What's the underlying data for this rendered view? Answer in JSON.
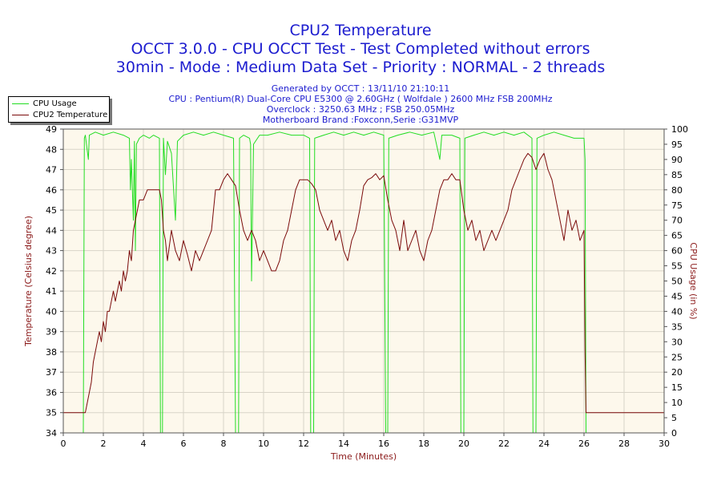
{
  "titles": [
    "CPU2 Temperature",
    "OCCT 3.0.0 - CPU OCCT Test - Test Completed without errors",
    "30min - Mode : Medium Data Set - Priority : NORMAL - 2 threads"
  ],
  "info": [
    "Generated by OCCT : 13/11/10 21:10:11",
    "CPU : Pentium(R) Dual-Core CPU E5300 @ 2.60GHz ( Wolfdale ) 2600 MHz FSB 200MHz",
    "Overclock : 3250.63 MHz ; FSB 250.05MHz",
    "Motherboard Brand :Foxconn,Serie :G31MVP"
  ],
  "colors": {
    "plot_bg": "#fdf8ec",
    "grid": "#d8d4c8",
    "temperature": "#7a0a0a",
    "cpu_usage": "#22dd22",
    "title": "#1c1ccf",
    "axis_title": "#8b1a1a"
  },
  "chart_data": {
    "type": "line",
    "xlabel": "Time (Minutes)",
    "ylabel_left": "Temperature (Celsius degree)",
    "ylabel_right": "CPU Usage (in %)",
    "xlim": [
      0,
      30
    ],
    "ylim_left": [
      34,
      49
    ],
    "ylim_right": [
      0,
      100
    ],
    "x_ticks": [
      0,
      2,
      4,
      6,
      8,
      10,
      12,
      14,
      16,
      18,
      20,
      22,
      24,
      26,
      28,
      30
    ],
    "y_ticks_left": [
      34,
      35,
      36,
      37,
      38,
      39,
      40,
      41,
      42,
      43,
      44,
      45,
      46,
      47,
      48,
      49
    ],
    "y_ticks_right": [
      0,
      5,
      10,
      15,
      20,
      25,
      30,
      35,
      40,
      45,
      50,
      55,
      60,
      65,
      70,
      75,
      80,
      85,
      90,
      95,
      100
    ],
    "legend": {
      "position": "top-left",
      "entries": [
        "CPU Usage",
        "CPU2 Temperature"
      ]
    },
    "series": [
      {
        "name": "CPU Usage",
        "axis": "right",
        "points": [
          [
            0,
            0
          ],
          [
            1.0,
            0
          ],
          [
            1.05,
            97
          ],
          [
            1.1,
            98
          ],
          [
            1.25,
            90
          ],
          [
            1.3,
            98
          ],
          [
            1.6,
            99
          ],
          [
            2.0,
            98
          ],
          [
            2.5,
            99
          ],
          [
            3.0,
            98
          ],
          [
            3.3,
            97
          ],
          [
            3.35,
            80
          ],
          [
            3.4,
            90
          ],
          [
            3.5,
            70
          ],
          [
            3.55,
            96
          ],
          [
            3.6,
            60
          ],
          [
            3.65,
            95
          ],
          [
            3.8,
            97
          ],
          [
            4.0,
            98
          ],
          [
            4.3,
            97
          ],
          [
            4.5,
            98
          ],
          [
            4.8,
            97
          ],
          [
            4.85,
            0
          ],
          [
            4.95,
            0
          ],
          [
            5.0,
            97
          ],
          [
            5.1,
            85
          ],
          [
            5.2,
            96
          ],
          [
            5.4,
            92
          ],
          [
            5.6,
            70
          ],
          [
            5.7,
            96
          ],
          [
            6.0,
            98
          ],
          [
            6.5,
            99
          ],
          [
            7.0,
            98
          ],
          [
            7.5,
            99
          ],
          [
            8.0,
            98
          ],
          [
            8.5,
            97
          ],
          [
            8.6,
            0
          ],
          [
            8.75,
            0
          ],
          [
            8.8,
            97
          ],
          [
            9.0,
            98
          ],
          [
            9.3,
            97
          ],
          [
            9.35,
            95
          ],
          [
            9.4,
            50
          ],
          [
            9.5,
            95
          ],
          [
            9.8,
            98
          ],
          [
            10.2,
            98
          ],
          [
            10.8,
            99
          ],
          [
            11.4,
            98
          ],
          [
            12.0,
            98
          ],
          [
            12.3,
            97
          ],
          [
            12.35,
            0
          ],
          [
            12.5,
            0
          ],
          [
            12.55,
            97
          ],
          [
            13.0,
            98
          ],
          [
            13.5,
            99
          ],
          [
            14.0,
            98
          ],
          [
            14.5,
            99
          ],
          [
            15.0,
            98
          ],
          [
            15.5,
            99
          ],
          [
            16.0,
            98
          ],
          [
            16.1,
            0
          ],
          [
            16.2,
            0
          ],
          [
            16.25,
            97
          ],
          [
            16.7,
            98
          ],
          [
            17.3,
            99
          ],
          [
            17.9,
            98
          ],
          [
            18.5,
            99
          ],
          [
            18.8,
            90
          ],
          [
            18.9,
            98
          ],
          [
            19.4,
            98
          ],
          [
            19.8,
            97
          ],
          [
            19.85,
            0
          ],
          [
            20.0,
            0
          ],
          [
            20.05,
            97
          ],
          [
            20.5,
            98
          ],
          [
            21.0,
            99
          ],
          [
            21.5,
            98
          ],
          [
            22.0,
            99
          ],
          [
            22.5,
            98
          ],
          [
            23.0,
            99
          ],
          [
            23.4,
            97
          ],
          [
            23.45,
            0
          ],
          [
            23.6,
            0
          ],
          [
            23.65,
            97
          ],
          [
            24.0,
            98
          ],
          [
            24.5,
            99
          ],
          [
            25.0,
            98
          ],
          [
            25.5,
            97
          ],
          [
            26.0,
            97
          ],
          [
            26.05,
            90
          ],
          [
            26.1,
            0
          ],
          [
            30,
            0
          ]
        ]
      },
      {
        "name": "CPU2 Temperature",
        "axis": "left",
        "points": [
          [
            0,
            35
          ],
          [
            1.0,
            35
          ],
          [
            1.1,
            35
          ],
          [
            1.2,
            35.5
          ],
          [
            1.3,
            36
          ],
          [
            1.4,
            36.5
          ],
          [
            1.5,
            37.5
          ],
          [
            1.6,
            38
          ],
          [
            1.7,
            38.5
          ],
          [
            1.8,
            39
          ],
          [
            1.9,
            38.5
          ],
          [
            2.0,
            39.5
          ],
          [
            2.1,
            39
          ],
          [
            2.2,
            40
          ],
          [
            2.3,
            40
          ],
          [
            2.4,
            40.5
          ],
          [
            2.5,
            41
          ],
          [
            2.6,
            40.5
          ],
          [
            2.7,
            41
          ],
          [
            2.8,
            41.5
          ],
          [
            2.9,
            41
          ],
          [
            3.0,
            42
          ],
          [
            3.1,
            41.5
          ],
          [
            3.2,
            42
          ],
          [
            3.3,
            43
          ],
          [
            3.4,
            42.5
          ],
          [
            3.5,
            44
          ],
          [
            3.6,
            44.5
          ],
          [
            3.7,
            45
          ],
          [
            3.8,
            45.5
          ],
          [
            4.0,
            45.5
          ],
          [
            4.2,
            46
          ],
          [
            4.4,
            46
          ],
          [
            4.6,
            46
          ],
          [
            4.8,
            46
          ],
          [
            4.9,
            45.5
          ],
          [
            5.0,
            44
          ],
          [
            5.1,
            43.5
          ],
          [
            5.2,
            42.5
          ],
          [
            5.4,
            44
          ],
          [
            5.6,
            43
          ],
          [
            5.8,
            42.5
          ],
          [
            6.0,
            43.5
          ],
          [
            6.2,
            42.8
          ],
          [
            6.4,
            42
          ],
          [
            6.6,
            43
          ],
          [
            6.8,
            42.5
          ],
          [
            7.0,
            43
          ],
          [
            7.2,
            43.5
          ],
          [
            7.4,
            44
          ],
          [
            7.6,
            46
          ],
          [
            7.8,
            46
          ],
          [
            8.0,
            46.5
          ],
          [
            8.2,
            46.8
          ],
          [
            8.4,
            46.5
          ],
          [
            8.6,
            46.2
          ],
          [
            8.8,
            45
          ],
          [
            9.0,
            44
          ],
          [
            9.2,
            43.5
          ],
          [
            9.4,
            44
          ],
          [
            9.6,
            43.5
          ],
          [
            9.8,
            42.5
          ],
          [
            10.0,
            43
          ],
          [
            10.2,
            42.5
          ],
          [
            10.4,
            42
          ],
          [
            10.6,
            42
          ],
          [
            10.8,
            42.5
          ],
          [
            11.0,
            43.5
          ],
          [
            11.2,
            44
          ],
          [
            11.4,
            45
          ],
          [
            11.6,
            46
          ],
          [
            11.8,
            46.5
          ],
          [
            12.0,
            46.5
          ],
          [
            12.2,
            46.5
          ],
          [
            12.4,
            46.3
          ],
          [
            12.6,
            46
          ],
          [
            12.8,
            45
          ],
          [
            13.0,
            44.5
          ],
          [
            13.2,
            44
          ],
          [
            13.4,
            44.5
          ],
          [
            13.6,
            43.5
          ],
          [
            13.8,
            44
          ],
          [
            14.0,
            43
          ],
          [
            14.2,
            42.5
          ],
          [
            14.4,
            43.5
          ],
          [
            14.6,
            44
          ],
          [
            14.8,
            45
          ],
          [
            15.0,
            46.2
          ],
          [
            15.2,
            46.5
          ],
          [
            15.4,
            46.6
          ],
          [
            15.6,
            46.8
          ],
          [
            15.8,
            46.5
          ],
          [
            16.0,
            46.7
          ],
          [
            16.2,
            45.5
          ],
          [
            16.4,
            44.5
          ],
          [
            16.6,
            44
          ],
          [
            16.8,
            43
          ],
          [
            17.0,
            44.5
          ],
          [
            17.2,
            43
          ],
          [
            17.4,
            43.5
          ],
          [
            17.6,
            44
          ],
          [
            17.8,
            43
          ],
          [
            18.0,
            42.5
          ],
          [
            18.2,
            43.5
          ],
          [
            18.4,
            44
          ],
          [
            18.6,
            45
          ],
          [
            18.8,
            46
          ],
          [
            19.0,
            46.5
          ],
          [
            19.2,
            46.5
          ],
          [
            19.4,
            46.8
          ],
          [
            19.6,
            46.5
          ],
          [
            19.8,
            46.5
          ],
          [
            20.0,
            45
          ],
          [
            20.2,
            44
          ],
          [
            20.4,
            44.5
          ],
          [
            20.6,
            43.5
          ],
          [
            20.8,
            44
          ],
          [
            21.0,
            43
          ],
          [
            21.2,
            43.5
          ],
          [
            21.4,
            44
          ],
          [
            21.6,
            43.5
          ],
          [
            21.8,
            44
          ],
          [
            22.0,
            44.5
          ],
          [
            22.2,
            45
          ],
          [
            22.4,
            46
          ],
          [
            22.6,
            46.5
          ],
          [
            22.8,
            47
          ],
          [
            23.0,
            47.5
          ],
          [
            23.2,
            47.8
          ],
          [
            23.4,
            47.6
          ],
          [
            23.6,
            47
          ],
          [
            23.8,
            47.5
          ],
          [
            24.0,
            47.8
          ],
          [
            24.2,
            47
          ],
          [
            24.4,
            46.5
          ],
          [
            24.6,
            45.5
          ],
          [
            24.8,
            44.5
          ],
          [
            25.0,
            43.5
          ],
          [
            25.2,
            45
          ],
          [
            25.4,
            44
          ],
          [
            25.6,
            44.5
          ],
          [
            25.8,
            43.5
          ],
          [
            26.0,
            44
          ],
          [
            26.05,
            38
          ],
          [
            26.1,
            35
          ],
          [
            30,
            35
          ]
        ]
      }
    ]
  }
}
